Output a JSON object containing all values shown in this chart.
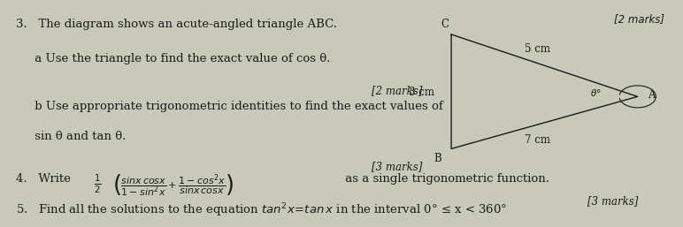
{
  "bg_color": "#c9c9ba",
  "text_color": "#1a1a1a",
  "top_right_marks": "[2 marks]",
  "q3_title": "3.   The diagram shows an acute-angled triangle ABC.",
  "q3a": "     a Use the triangle to find the exact value of cos θ.",
  "q3_marks1": "[2 marks]",
  "q3b_line1": "     b Use appropriate trigonometric identities to find the exact values of",
  "q3b_line2": "     sin θ and tan θ.",
  "q3_marks2": "[3 marks]",
  "q4_marks": "[3 marks]",
  "q5_text": "5.   Find all the solutions to the equation tan²x = tan x in the interval 0° ≤ x < 360°",
  "font_size": 9.5,
  "font_size_small": 8.5,
  "tri_C": [
    0.665,
    0.87
  ],
  "tri_A": [
    0.945,
    0.56
  ],
  "tri_B": [
    0.665,
    0.3
  ],
  "label_CA": "5 cm",
  "label_CB": "3 cm",
  "label_BA": "7 cm"
}
